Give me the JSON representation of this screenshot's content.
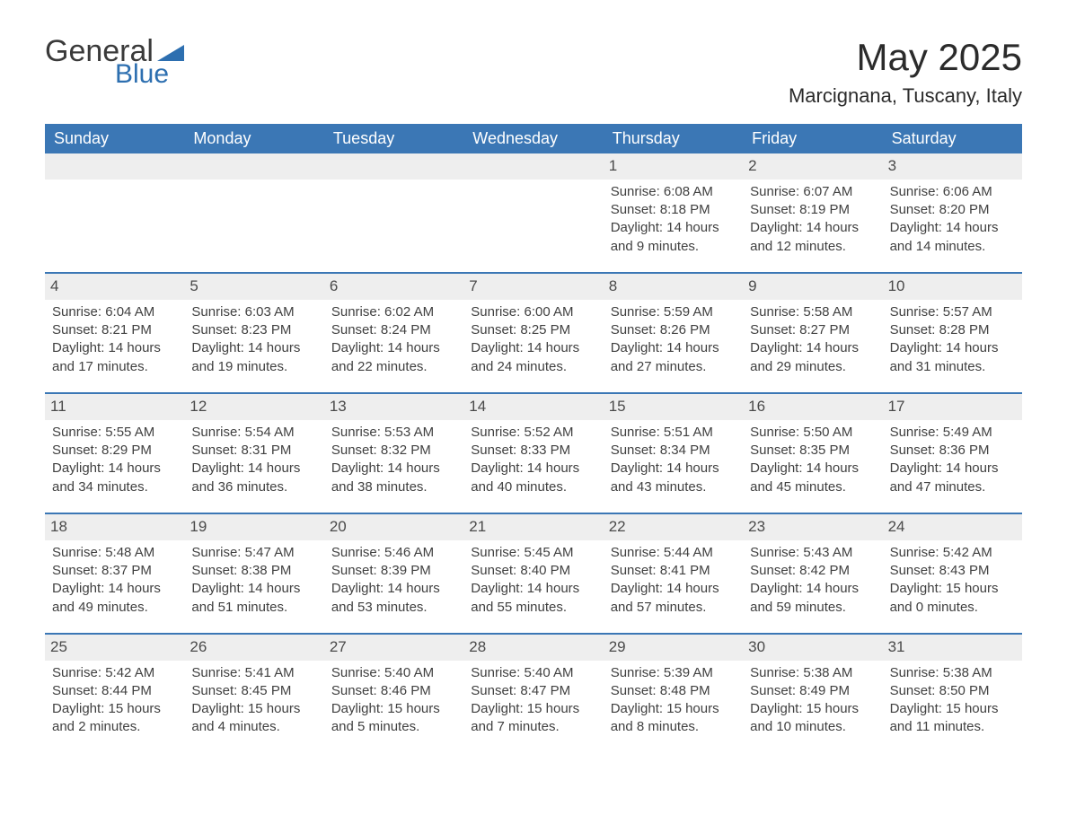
{
  "logo": {
    "text_general": "General",
    "text_blue": "Blue",
    "triangle_color": "#2d6fb0"
  },
  "title": "May 2025",
  "location": "Marcignana, Tuscany, Italy",
  "colors": {
    "header_bg": "#3b77b5",
    "header_text": "#ffffff",
    "daynum_bg": "#eeeeee",
    "daynum_border": "#3b77b5",
    "body_text": "#404040",
    "page_bg": "#ffffff"
  },
  "days_of_week": [
    "Sunday",
    "Monday",
    "Tuesday",
    "Wednesday",
    "Thursday",
    "Friday",
    "Saturday"
  ],
  "weeks": [
    [
      {
        "blank": true
      },
      {
        "blank": true
      },
      {
        "blank": true
      },
      {
        "blank": true
      },
      {
        "n": "1",
        "sunrise": "6:08 AM",
        "sunset": "8:18 PM",
        "daylight": "14 hours and 9 minutes."
      },
      {
        "n": "2",
        "sunrise": "6:07 AM",
        "sunset": "8:19 PM",
        "daylight": "14 hours and 12 minutes."
      },
      {
        "n": "3",
        "sunrise": "6:06 AM",
        "sunset": "8:20 PM",
        "daylight": "14 hours and 14 minutes."
      }
    ],
    [
      {
        "n": "4",
        "sunrise": "6:04 AM",
        "sunset": "8:21 PM",
        "daylight": "14 hours and 17 minutes."
      },
      {
        "n": "5",
        "sunrise": "6:03 AM",
        "sunset": "8:23 PM",
        "daylight": "14 hours and 19 minutes."
      },
      {
        "n": "6",
        "sunrise": "6:02 AM",
        "sunset": "8:24 PM",
        "daylight": "14 hours and 22 minutes."
      },
      {
        "n": "7",
        "sunrise": "6:00 AM",
        "sunset": "8:25 PM",
        "daylight": "14 hours and 24 minutes."
      },
      {
        "n": "8",
        "sunrise": "5:59 AM",
        "sunset": "8:26 PM",
        "daylight": "14 hours and 27 minutes."
      },
      {
        "n": "9",
        "sunrise": "5:58 AM",
        "sunset": "8:27 PM",
        "daylight": "14 hours and 29 minutes."
      },
      {
        "n": "10",
        "sunrise": "5:57 AM",
        "sunset": "8:28 PM",
        "daylight": "14 hours and 31 minutes."
      }
    ],
    [
      {
        "n": "11",
        "sunrise": "5:55 AM",
        "sunset": "8:29 PM",
        "daylight": "14 hours and 34 minutes."
      },
      {
        "n": "12",
        "sunrise": "5:54 AM",
        "sunset": "8:31 PM",
        "daylight": "14 hours and 36 minutes."
      },
      {
        "n": "13",
        "sunrise": "5:53 AM",
        "sunset": "8:32 PM",
        "daylight": "14 hours and 38 minutes."
      },
      {
        "n": "14",
        "sunrise": "5:52 AM",
        "sunset": "8:33 PM",
        "daylight": "14 hours and 40 minutes."
      },
      {
        "n": "15",
        "sunrise": "5:51 AM",
        "sunset": "8:34 PM",
        "daylight": "14 hours and 43 minutes."
      },
      {
        "n": "16",
        "sunrise": "5:50 AM",
        "sunset": "8:35 PM",
        "daylight": "14 hours and 45 minutes."
      },
      {
        "n": "17",
        "sunrise": "5:49 AM",
        "sunset": "8:36 PM",
        "daylight": "14 hours and 47 minutes."
      }
    ],
    [
      {
        "n": "18",
        "sunrise": "5:48 AM",
        "sunset": "8:37 PM",
        "daylight": "14 hours and 49 minutes."
      },
      {
        "n": "19",
        "sunrise": "5:47 AM",
        "sunset": "8:38 PM",
        "daylight": "14 hours and 51 minutes."
      },
      {
        "n": "20",
        "sunrise": "5:46 AM",
        "sunset": "8:39 PM",
        "daylight": "14 hours and 53 minutes."
      },
      {
        "n": "21",
        "sunrise": "5:45 AM",
        "sunset": "8:40 PM",
        "daylight": "14 hours and 55 minutes."
      },
      {
        "n": "22",
        "sunrise": "5:44 AM",
        "sunset": "8:41 PM",
        "daylight": "14 hours and 57 minutes."
      },
      {
        "n": "23",
        "sunrise": "5:43 AM",
        "sunset": "8:42 PM",
        "daylight": "14 hours and 59 minutes."
      },
      {
        "n": "24",
        "sunrise": "5:42 AM",
        "sunset": "8:43 PM",
        "daylight": "15 hours and 0 minutes."
      }
    ],
    [
      {
        "n": "25",
        "sunrise": "5:42 AM",
        "sunset": "8:44 PM",
        "daylight": "15 hours and 2 minutes."
      },
      {
        "n": "26",
        "sunrise": "5:41 AM",
        "sunset": "8:45 PM",
        "daylight": "15 hours and 4 minutes."
      },
      {
        "n": "27",
        "sunrise": "5:40 AM",
        "sunset": "8:46 PM",
        "daylight": "15 hours and 5 minutes."
      },
      {
        "n": "28",
        "sunrise": "5:40 AM",
        "sunset": "8:47 PM",
        "daylight": "15 hours and 7 minutes."
      },
      {
        "n": "29",
        "sunrise": "5:39 AM",
        "sunset": "8:48 PM",
        "daylight": "15 hours and 8 minutes."
      },
      {
        "n": "30",
        "sunrise": "5:38 AM",
        "sunset": "8:49 PM",
        "daylight": "15 hours and 10 minutes."
      },
      {
        "n": "31",
        "sunrise": "5:38 AM",
        "sunset": "8:50 PM",
        "daylight": "15 hours and 11 minutes."
      }
    ]
  ],
  "labels": {
    "sunrise": "Sunrise:",
    "sunset": "Sunset:",
    "daylight": "Daylight:"
  }
}
